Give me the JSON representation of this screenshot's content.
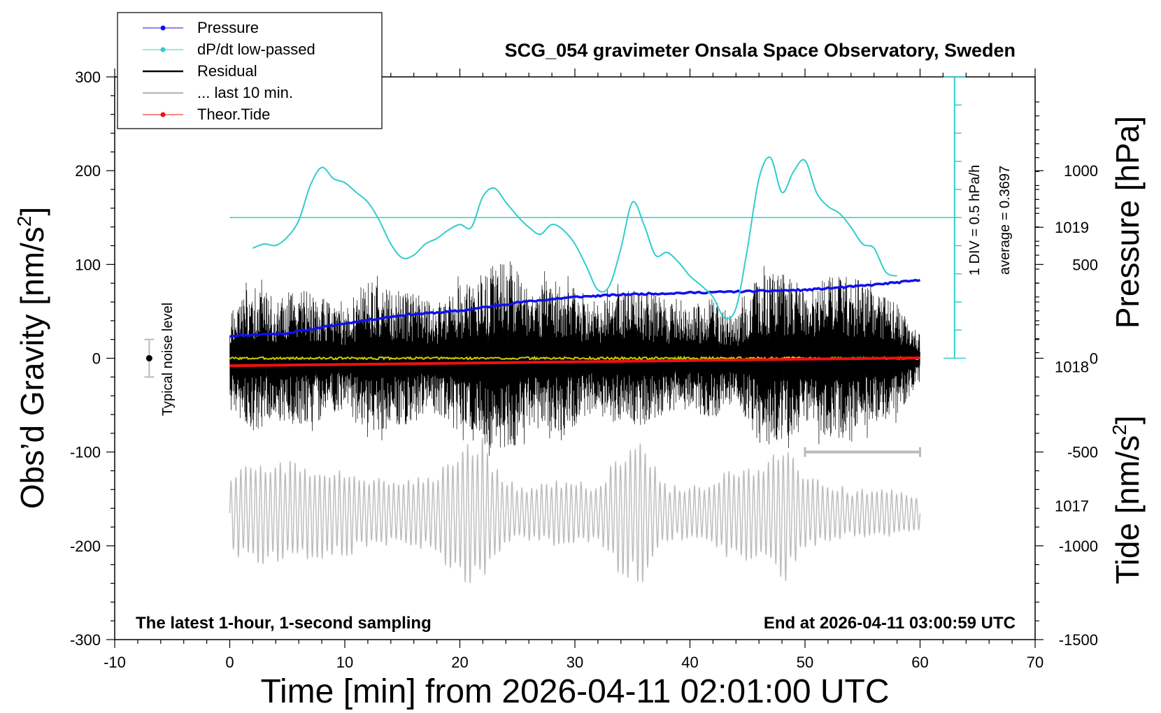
{
  "chart_data": {
    "type": "line",
    "title": "SCG_054 gravimeter Onsala Space Observatory, Sweden",
    "xlabel": "Time [min] from 2026-04-11 02:01:00 UTC",
    "ylabel_left_prefix": "Obs’d Gravity [nm/s",
    "ylabel_left_sup": "2",
    "ylabel_left_suffix": "]",
    "ylabel_right_top": "Pressure [hPa]",
    "ylabel_right_bottom_prefix": "Tide [nm/s",
    "ylabel_right_bottom_sup": "2",
    "ylabel_right_bottom_suffix": "]",
    "xlim": [
      -10,
      70
    ],
    "ylim": [
      -300,
      300
    ],
    "pressure_range": [
      1016.04,
      1020.08
    ],
    "tide_range": [
      -1500,
      1500
    ],
    "x_ticks": [
      "-10",
      "0",
      "10",
      "20",
      "30",
      "40",
      "50",
      "60",
      "70"
    ],
    "y_ticks": [
      "300",
      "200",
      "100",
      "0",
      "-100",
      "-200",
      "-300"
    ],
    "pressure_ticks": [
      "1019",
      "1018",
      "1017"
    ],
    "tide_ticks": [
      "1000",
      "500",
      "0",
      "-500",
      "-1000",
      "-1500"
    ],
    "grid": false,
    "legend_position": "top-left",
    "legend": [
      {
        "label": "Pressure",
        "color": "#1010ee",
        "marker": "dot"
      },
      {
        "label": "dP/dt low-passed",
        "color": "#33cccc",
        "marker": "dot"
      },
      {
        "label": "Residual",
        "color": "#000000",
        "marker": "line"
      },
      {
        "label": "... last 10 min.",
        "color": "#bbbbbb",
        "marker": "line"
      },
      {
        "label": "Theor.Tide",
        "color": "#ee1111",
        "marker": "dot"
      }
    ],
    "series": [
      {
        "name": "Pressure",
        "unit": "hPa",
        "color": "#1010ee",
        "x": [
          0,
          5,
          10,
          15,
          20,
          25,
          30,
          35,
          40,
          45,
          50,
          55,
          60
        ],
        "y": [
          1018.22,
          1018.24,
          1018.31,
          1018.37,
          1018.4,
          1018.46,
          1018.5,
          1018.52,
          1018.53,
          1018.54,
          1018.55,
          1018.58,
          1018.62
        ]
      },
      {
        "name": "dP/dt low-passed",
        "unit": "hPa/h",
        "color": "#33cccc",
        "x": [
          2,
          3,
          4,
          5,
          6,
          7,
          8,
          9,
          10,
          11,
          12,
          13,
          14,
          15,
          16,
          17,
          18,
          19,
          20,
          21,
          22,
          23,
          24,
          25,
          26,
          27,
          28,
          29,
          30,
          31,
          32,
          33,
          34,
          35,
          36,
          37,
          38,
          39,
          40,
          41,
          42,
          43,
          44,
          45,
          46,
          47,
          48,
          49,
          50,
          51,
          52,
          53,
          54,
          55,
          56,
          57,
          58
        ],
        "y": [
          0.15,
          0.18,
          0.17,
          0.23,
          0.35,
          0.6,
          0.73,
          0.65,
          0.62,
          0.55,
          0.48,
          0.35,
          0.18,
          0.08,
          0.1,
          0.18,
          0.22,
          0.28,
          0.32,
          0.3,
          0.52,
          0.58,
          0.48,
          0.38,
          0.3,
          0.25,
          0.32,
          0.28,
          0.18,
          0.02,
          -0.15,
          -0.12,
          0.15,
          0.48,
          0.32,
          0.1,
          0.12,
          0.05,
          -0.05,
          -0.12,
          -0.2,
          -0.35,
          -0.28,
          0.15,
          0.65,
          0.8,
          0.55,
          0.7,
          0.78,
          0.55,
          0.45,
          0.4,
          0.3,
          0.18,
          0.15,
          -0.02,
          -0.05
        ]
      },
      {
        "name": "Residual",
        "unit": "nm/s²",
        "color": "#000000",
        "x": [
          0,
          60
        ],
        "envelope_x": [
          0,
          2,
          4,
          6,
          8,
          10,
          12,
          14,
          16,
          18,
          20,
          22,
          24,
          26,
          28,
          30,
          32,
          34,
          36,
          38,
          40,
          42,
          44,
          46,
          48,
          50,
          52,
          54,
          56,
          58,
          60
        ],
        "envelope_amp": [
          55,
          80,
          65,
          75,
          65,
          55,
          85,
          75,
          70,
          60,
          80,
          90,
          110,
          75,
          85,
          75,
          60,
          70,
          75,
          60,
          55,
          65,
          45,
          90,
          95,
          75,
          85,
          90,
          70,
          60,
          25
        ]
      },
      {
        "name": "... last 10 min.",
        "unit": "nm/s²",
        "color": "#bbbbbb",
        "x": [
          0,
          60
        ],
        "envelope_x": [
          0,
          3,
          6,
          9,
          12,
          15,
          18,
          20,
          22,
          24,
          26,
          28,
          30,
          32,
          34,
          36,
          38,
          40,
          42,
          44,
          46,
          48,
          50,
          52,
          54,
          56,
          58,
          60
        ],
        "envelope_amp": [
          45,
          60,
          55,
          50,
          40,
          35,
          45,
          75,
          80,
          35,
          30,
          35,
          35,
          30,
          70,
          75,
          30,
          30,
          35,
          55,
          55,
          80,
          40,
          35,
          25,
          30,
          25,
          20
        ]
      },
      {
        "name": "Theor.Tide",
        "unit": "nm/s²",
        "color": "#ee1111",
        "x": [
          0,
          10,
          20,
          30,
          40,
          50,
          60
        ],
        "y": [
          -40,
          -33,
          -26,
          -19,
          -12,
          -5,
          2
        ]
      }
    ],
    "dpdt_panel": {
      "scale_label": "1 DIV = 0.5 hPa/h",
      "average_label": "average = 0.3697",
      "average": 0.3697
    },
    "noise_label": "Typical noise level",
    "noise_level": 20,
    "annotation_left": "The latest 1-hour, 1-second sampling",
    "annotation_right": "End at 2026-04-11 03:00:59 UTC"
  }
}
